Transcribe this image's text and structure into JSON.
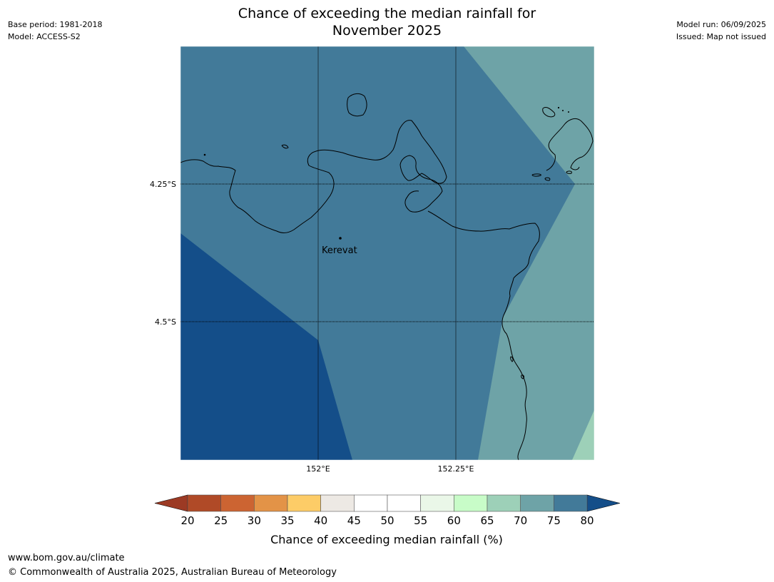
{
  "title": {
    "line1": "Chance of exceeding the median rainfall for",
    "line2": "November 2025"
  },
  "meta_left": {
    "base_period": "Base period: 1981-2018",
    "model": "Model: ACCESS-S2"
  },
  "meta_right": {
    "model_run": "Model run: 06/09/2025",
    "issued": "Issued: Map not issued"
  },
  "map": {
    "lat_labels": [
      "4.25°S",
      "4.5°S"
    ],
    "lon_labels": [
      "152°E",
      "152.25°E"
    ],
    "place": {
      "name": "Kerevat"
    },
    "colors": {
      "band_75_80": "#427a99",
      "band_80_plus": "#144e89",
      "band_70_75": "#6ea3a7",
      "band_65_70": "#9dd0b8",
      "coastline": "#000000"
    }
  },
  "colorbar": {
    "label": "Chance of exceeding median rainfall (%)",
    "ticks": [
      "20",
      "25",
      "30",
      "35",
      "40",
      "45",
      "50",
      "55",
      "60",
      "65",
      "70",
      "75",
      "80"
    ],
    "under_color": "#9c3a24",
    "over_color": "#144e89",
    "colors": [
      "#b04a27",
      "#cc6432",
      "#e39347",
      "#fdcc67",
      "#ede9e4",
      "#ffffff",
      "#ffffff",
      "#eaf7e8",
      "#c8fcc8",
      "#9dd0b8",
      "#6ea3a7",
      "#427a99"
    ]
  },
  "footer": {
    "url": "www.bom.gov.au/climate",
    "copyright": "© Commonwealth of Australia 2025, Australian Bureau of Meteorology"
  }
}
